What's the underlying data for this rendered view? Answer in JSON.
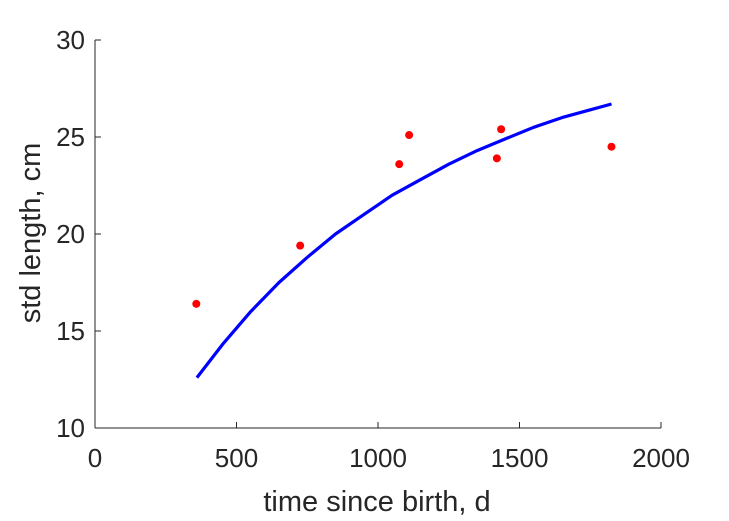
{
  "chart_data": {
    "type": "scatter",
    "xlabel": "time since birth, d",
    "ylabel": "std length, cm",
    "xlim": [
      0,
      2000
    ],
    "ylim": [
      10,
      30
    ],
    "xticks": [
      0,
      500,
      1000,
      1500,
      2000
    ],
    "yticks": [
      10,
      15,
      20,
      25,
      30
    ],
    "grid": false,
    "series": [
      {
        "kind": "scatter",
        "color": "#ff0000",
        "points": [
          {
            "x": 358,
            "y": 16.4
          },
          {
            "x": 725,
            "y": 19.4
          },
          {
            "x": 1075,
            "y": 23.6
          },
          {
            "x": 1110,
            "y": 25.1
          },
          {
            "x": 1420,
            "y": 23.9
          },
          {
            "x": 1435,
            "y": 25.4
          },
          {
            "x": 1825,
            "y": 24.5
          }
        ]
      },
      {
        "kind": "line",
        "color": "#0000ff",
        "points": [
          {
            "x": 360,
            "y": 12.6
          },
          {
            "x": 450,
            "y": 14.3
          },
          {
            "x": 550,
            "y": 16.0
          },
          {
            "x": 650,
            "y": 17.5
          },
          {
            "x": 750,
            "y": 18.8
          },
          {
            "x": 850,
            "y": 20.0
          },
          {
            "x": 950,
            "y": 21.0
          },
          {
            "x": 1050,
            "y": 22.0
          },
          {
            "x": 1150,
            "y": 22.8
          },
          {
            "x": 1250,
            "y": 23.6
          },
          {
            "x": 1350,
            "y": 24.3
          },
          {
            "x": 1450,
            "y": 24.9
          },
          {
            "x": 1550,
            "y": 25.5
          },
          {
            "x": 1650,
            "y": 26.0
          },
          {
            "x": 1750,
            "y": 26.4
          },
          {
            "x": 1825,
            "y": 26.7
          }
        ]
      }
    ]
  }
}
